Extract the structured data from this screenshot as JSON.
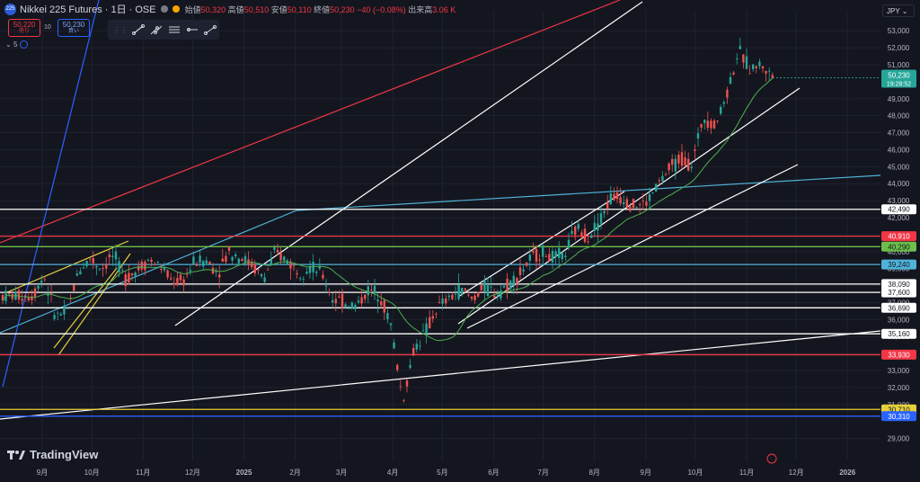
{
  "header": {
    "symbol_icon": "225",
    "title": "Nikkei 225 Futures · 1日 · OSE",
    "open_label": "始値",
    "open": "50,320",
    "high_label": "高値",
    "high": "50,510",
    "low_label": "安値",
    "low": "50,110",
    "close_label": "終値",
    "close": "50,230",
    "change": "−40 (−0.08%)",
    "volume_label": "出来高",
    "volume": "3.06 K",
    "sell_price": "50,220",
    "sell_label": "売り",
    "buy_price": "50,230",
    "buy_label": "買い",
    "spread": "10",
    "indicator_count": "5",
    "currency": "JPY"
  },
  "toolbar": {
    "tools": [
      "line-tool-icon",
      "fib-tool-icon",
      "parallel-channel-icon",
      "horizontal-ray-icon",
      "trend-line-icon"
    ]
  },
  "brand": {
    "name": "TradingView"
  },
  "colors": {
    "background": "#14161f",
    "up": "#26a69a",
    "down": "#ef5350",
    "ma": "#4caf50",
    "white_line": "#ffffff",
    "red_line": "#f23645",
    "cyan_line": "#4fb3d9",
    "green_line": "#6cbf4a",
    "yellow_line": "#e6d03c",
    "blue_line": "#2962ff"
  },
  "chart_data": {
    "type": "candlestick",
    "timeframe": "1D",
    "y_axis": {
      "min": 28500,
      "max": 53500,
      "ticks": [
        "29,000",
        "31,000",
        "32,000",
        "33,000",
        "34,000",
        "35,000",
        "36,000",
        "37,000",
        "38,000",
        "39,000",
        "40,000",
        "41,000",
        "42,000",
        "43,000",
        "44,000",
        "45,000",
        "46,000",
        "47,000",
        "48,000",
        "49,000",
        "51,000",
        "52,000",
        "53,000"
      ]
    },
    "x_axis": {
      "ticks": [
        "9月",
        "10月",
        "11月",
        "12月",
        "2025",
        "2月",
        "3月",
        "4月",
        "5月",
        "6月",
        "7月",
        "8月",
        "9月",
        "10月",
        "11月",
        "12月",
        "2026"
      ]
    },
    "last_price": "50,230",
    "countdown": "19:28:52",
    "horizontal_levels": [
      {
        "value": 42490,
        "label": "42,490",
        "color": "#ffffff"
      },
      {
        "value": 40910,
        "label": "40,910",
        "color": "#f23645"
      },
      {
        "value": 40290,
        "label": "40,290",
        "color": "#6cbf4a"
      },
      {
        "value": 39240,
        "label": "39,240",
        "color": "#4fb3d9"
      },
      {
        "value": 38090,
        "label": "38,090",
        "color": "#ffffff"
      },
      {
        "value": 37600,
        "label": "37,600",
        "color": "#ffffff"
      },
      {
        "value": 36690,
        "label": "36,690",
        "color": "#ffffff"
      },
      {
        "value": 35160,
        "label": "35,160",
        "color": "#ffffff"
      },
      {
        "value": 33930,
        "label": "33,930",
        "color": "#f23645"
      },
      {
        "value": 30710,
        "label": "30,710",
        "color": "#e6d03c"
      },
      {
        "value": 30310,
        "label": "30,310",
        "color": "#2962ff"
      }
    ],
    "price_path": [
      [
        "2024-08-26",
        37400
      ],
      [
        "2024-09-02",
        38600
      ],
      [
        "2024-09-09",
        36200
      ],
      [
        "2024-09-16",
        36400
      ],
      [
        "2024-09-23",
        38900
      ],
      [
        "2024-09-30",
        39600
      ],
      [
        "2024-10-07",
        39000
      ],
      [
        "2024-10-14",
        39800
      ],
      [
        "2024-10-21",
        38400
      ],
      [
        "2024-10-28",
        38900
      ],
      [
        "2024-11-04",
        39500
      ],
      [
        "2024-11-11",
        39200
      ],
      [
        "2024-11-18",
        38300
      ],
      [
        "2024-11-25",
        38200
      ],
      [
        "2024-12-02",
        39400
      ],
      [
        "2024-12-09",
        39500
      ],
      [
        "2024-12-16",
        38800
      ],
      [
        "2024-12-23",
        40000
      ],
      [
        "2024-12-30",
        39700
      ],
      [
        "2025-01-06",
        39200
      ],
      [
        "2025-01-13",
        38400
      ],
      [
        "2025-01-20",
        39900
      ],
      [
        "2025-01-27",
        39500
      ],
      [
        "2025-02-03",
        38800
      ],
      [
        "2025-02-10",
        39100
      ],
      [
        "2025-02-17",
        38700
      ],
      [
        "2025-02-24",
        37200
      ],
      [
        "2025-03-03",
        37000
      ],
      [
        "2025-03-10",
        36800
      ],
      [
        "2025-03-17",
        37700
      ],
      [
        "2025-03-24",
        37600
      ],
      [
        "2025-03-31",
        35600
      ],
      [
        "2025-04-07",
        31200
      ],
      [
        "2025-04-14",
        34300
      ],
      [
        "2025-04-21",
        35300
      ],
      [
        "2025-04-28",
        36700
      ],
      [
        "2025-05-05",
        37200
      ],
      [
        "2025-05-12",
        37800
      ],
      [
        "2025-05-19",
        37200
      ],
      [
        "2025-05-26",
        37900
      ],
      [
        "2025-06-02",
        37600
      ],
      [
        "2025-06-09",
        38000
      ],
      [
        "2025-06-16",
        38600
      ],
      [
        "2025-06-23",
        39500
      ],
      [
        "2025-06-30",
        40000
      ],
      [
        "2025-07-07",
        39600
      ],
      [
        "2025-07-14",
        39800
      ],
      [
        "2025-07-21",
        41400
      ],
      [
        "2025-07-28",
        40900
      ],
      [
        "2025-08-04",
        41800
      ],
      [
        "2025-08-11",
        43200
      ],
      [
        "2025-08-18",
        43200
      ],
      [
        "2025-08-25",
        42700
      ],
      [
        "2025-09-01",
        42800
      ],
      [
        "2025-09-08",
        43900
      ],
      [
        "2025-09-15",
        44800
      ],
      [
        "2025-09-22",
        45500
      ],
      [
        "2025-09-29",
        45100
      ],
      [
        "2025-10-06",
        48000
      ],
      [
        "2025-10-13",
        47400
      ],
      [
        "2025-10-20",
        49300
      ],
      [
        "2025-10-27",
        51800
      ],
      [
        "2025-11-03",
        50800
      ],
      [
        "2025-11-10",
        51000
      ],
      [
        "2025-11-17",
        50230
      ]
    ]
  }
}
